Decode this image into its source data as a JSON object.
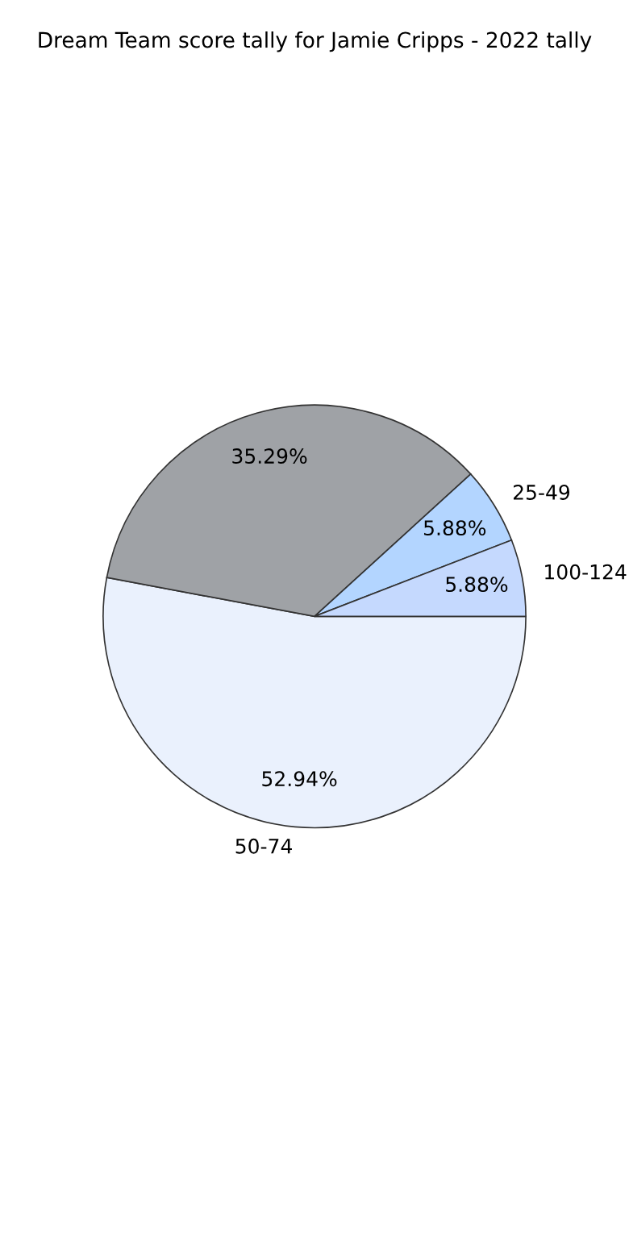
{
  "chart_data": {
    "type": "pie",
    "title": "Dream Team score tally for Jamie Cripps - 2022 tally",
    "categories": [
      "50-74",
      null,
      "25-49",
      "100-124"
    ],
    "values": [
      52.94,
      35.29,
      5.88,
      5.88
    ],
    "value_labels": [
      "52.94%",
      "35.29%",
      "5.88%",
      "5.88%"
    ],
    "colors": [
      "#eaf1fd",
      "#9fa2a6",
      "#b3d5ff",
      "#c5d9fe"
    ]
  }
}
